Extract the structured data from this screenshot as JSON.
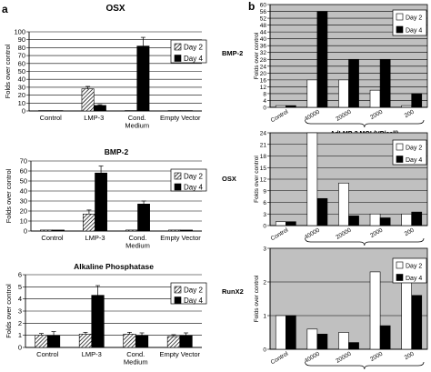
{
  "panels": {
    "a": "a",
    "b": "b"
  },
  "colors": {
    "plot_bg_b": "#c0c0c0",
    "bar_black": "#000000",
    "bar_white": "#ffffff",
    "grid": "#000000"
  },
  "chart_data": [
    {
      "panel": "a",
      "type": "bar",
      "title": "OSX",
      "ylabel": "Folds over control",
      "categories": [
        "Control",
        "LMP-3",
        "Cond. Medium",
        "Empty Vector"
      ],
      "category_lines": [
        [
          "Control"
        ],
        [
          "LMP-3"
        ],
        [
          "Cond.",
          "Medium"
        ],
        [
          "Empty Vector"
        ]
      ],
      "ylim": [
        0,
        100
      ],
      "yticks": [
        0,
        10,
        20,
        30,
        40,
        50,
        60,
        70,
        80,
        90,
        100
      ],
      "legend": "top-right",
      "series": [
        {
          "name": "Day 2",
          "pattern": "hatched",
          "values": [
            0.5,
            28,
            0.5,
            0.5
          ],
          "errors": [
            0,
            3,
            0,
            0
          ]
        },
        {
          "name": "Day 4",
          "pattern": "black",
          "values": [
            0.5,
            7,
            82,
            0.5
          ],
          "errors": [
            0,
            1,
            11,
            0
          ]
        }
      ]
    },
    {
      "panel": "a",
      "type": "bar",
      "title": "BMP-2",
      "ylabel": "Folds over control",
      "categories": [
        "Control",
        "LMP-3",
        "Cond. Medium",
        "Empty Vector"
      ],
      "category_lines": [
        [
          "Control"
        ],
        [
          "LMP-3"
        ],
        [
          "Cond.",
          "Medium"
        ],
        [
          "Empty Vector"
        ]
      ],
      "ylim": [
        0,
        70
      ],
      "yticks": [
        0,
        10,
        20,
        30,
        40,
        50,
        60,
        70
      ],
      "legend": "top-right",
      "series": [
        {
          "name": "Day 2",
          "pattern": "hatched",
          "values": [
            1,
            17,
            1,
            1
          ],
          "errors": [
            0,
            4,
            0,
            0
          ]
        },
        {
          "name": "Day 4",
          "pattern": "black",
          "values": [
            1,
            58,
            27,
            1
          ],
          "errors": [
            0,
            7,
            3,
            0
          ]
        }
      ]
    },
    {
      "panel": "a",
      "type": "bar",
      "title": "Alkaline Phosphatase",
      "ylabel": "Folds over control",
      "categories": [
        "Control",
        "LMP-3",
        "Cond. Medium",
        "Empty Vector"
      ],
      "category_lines": [
        [
          "Control"
        ],
        [
          "LMP-3"
        ],
        [
          "Cond.",
          "Medium"
        ],
        [
          "Empty Vector"
        ]
      ],
      "ylim": [
        0,
        6
      ],
      "yticks": [
        0,
        1,
        2,
        3,
        4,
        5,
        6
      ],
      "legend": "top-right",
      "series": [
        {
          "name": "Day 2",
          "pattern": "hatched",
          "values": [
            1,
            1.1,
            1.1,
            0.9
          ],
          "errors": [
            0.15,
            0.15,
            0.15,
            0.15
          ]
        },
        {
          "name": "Day 4",
          "pattern": "black",
          "values": [
            1,
            4.3,
            1,
            1
          ],
          "errors": [
            0.3,
            0.8,
            0.2,
            0.2
          ]
        }
      ]
    },
    {
      "panel": "b",
      "type": "bar",
      "title": "BMP-2",
      "ylabel": "Folds over control",
      "xlabel": "AdLMP-3 MOI (VP/cell)",
      "categories": [
        "Control",
        "40000",
        "20000",
        "2000",
        "200"
      ],
      "ylim": [
        0,
        60
      ],
      "yticks": [
        0,
        4,
        8,
        12,
        16,
        20,
        24,
        28,
        32,
        36,
        40,
        44,
        48,
        52,
        56,
        60
      ],
      "legend": "top-right",
      "series": [
        {
          "name": "Day 2",
          "pattern": "white",
          "values": [
            1,
            16,
            16,
            10,
            1
          ]
        },
        {
          "name": "Day 4",
          "pattern": "black",
          "values": [
            1,
            56,
            28,
            28,
            8
          ]
        }
      ]
    },
    {
      "panel": "b",
      "type": "bar",
      "title": "OSX",
      "ylabel": "Folds over control",
      "xlabel": "AdLMP-3 MOI (VP/cell)",
      "categories": [
        "Control",
        "40000",
        "20000",
        "2000",
        "200"
      ],
      "ylim": [
        0,
        24
      ],
      "yticks": [
        0,
        3,
        6,
        9,
        12,
        15,
        18,
        21,
        24
      ],
      "legend": "top-right",
      "series": [
        {
          "name": "Day 2",
          "pattern": "white",
          "values": [
            1,
            25,
            11,
            3,
            3
          ]
        },
        {
          "name": "Day 4",
          "pattern": "black",
          "values": [
            1,
            7,
            2.5,
            2,
            3.5
          ]
        }
      ]
    },
    {
      "panel": "b",
      "type": "bar",
      "title": "RunX2",
      "ylabel": "Folds over control",
      "xlabel": "AdLMP-3 MOI (VP/cell)",
      "categories": [
        "Control",
        "40000",
        "20000",
        "2000",
        "200"
      ],
      "ylim": [
        0,
        3
      ],
      "yticks": [
        0,
        1,
        2,
        3
      ],
      "legend": "top-right",
      "series": [
        {
          "name": "Day 2",
          "pattern": "white",
          "values": [
            1,
            0.6,
            0.5,
            2.3,
            2.2
          ]
        },
        {
          "name": "Day 4",
          "pattern": "black",
          "values": [
            1,
            0.45,
            0.2,
            0.7,
            1.6
          ]
        }
      ]
    }
  ]
}
